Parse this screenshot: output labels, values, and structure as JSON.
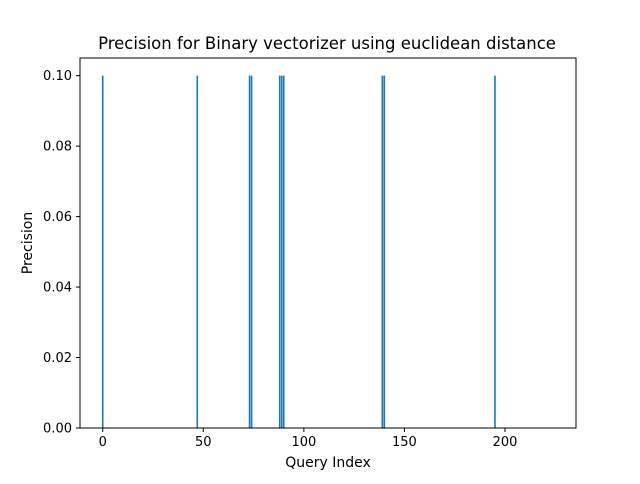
{
  "chart_data": {
    "type": "bar",
    "title": "Precision for Binary vectorizer using euclidean distance",
    "xlabel": "Query Index",
    "ylabel": "Precision",
    "xlim": [
      -11.3,
      235.3
    ],
    "ylim": [
      0,
      0.105
    ],
    "xticks": [
      0,
      50,
      100,
      150,
      200
    ],
    "yticks": [
      0.0,
      0.02,
      0.04,
      0.06,
      0.08,
      0.1
    ],
    "ytick_labels": [
      "0.00",
      "0.02",
      "0.04",
      "0.06",
      "0.08",
      "0.10"
    ],
    "bar_width": 0.8,
    "x": [
      0,
      47,
      73,
      74,
      88,
      89,
      90,
      139,
      140,
      195
    ],
    "values": [
      0.1,
      0.1,
      0.1,
      0.1,
      0.1,
      0.1,
      0.1,
      0.1,
      0.1,
      0.1
    ],
    "bar_color": "#1f77b4",
    "grid": false,
    "legend": false
  }
}
